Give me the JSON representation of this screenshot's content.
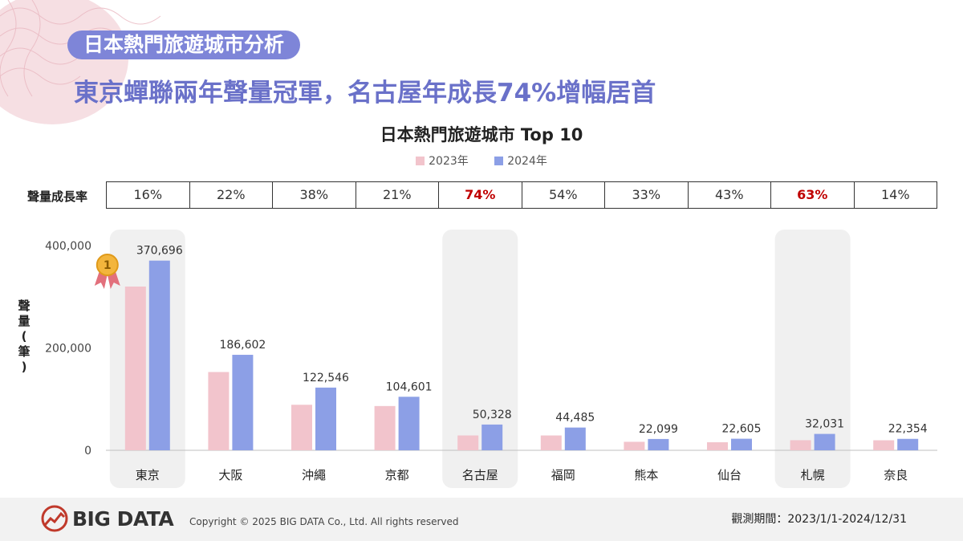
{
  "header": {
    "section_title": "日本熱門旅遊城市分析",
    "headline": "東京蟬聯兩年聲量冠軍，名古屋年成長74%增幅居首"
  },
  "growth": {
    "label": "聲量成長率",
    "rates": [
      "16%",
      "22%",
      "38%",
      "21%",
      "74%",
      "54%",
      "33%",
      "43%",
      "63%",
      "14%"
    ],
    "highlighted": [
      4,
      8
    ],
    "highlight_color": "#c00000"
  },
  "chart_data": {
    "type": "bar",
    "title": "日本熱門旅遊城市 Top 10",
    "categories": [
      "東京",
      "大阪",
      "沖繩",
      "京都",
      "名古屋",
      "福岡",
      "熊本",
      "仙台",
      "札幌",
      "奈良"
    ],
    "series": [
      {
        "name": "2023年",
        "color": "#f2c4cc",
        "values": [
          320000,
          153000,
          89000,
          86500,
          29000,
          29000,
          16600,
          15800,
          19700,
          19600
        ]
      },
      {
        "name": "2024年",
        "color": "#8c9fe6",
        "values": [
          370696,
          186602,
          122546,
          104601,
          50328,
          44485,
          22099,
          22605,
          32031,
          22354
        ]
      }
    ],
    "data_labels": [
      "370,696",
      "186,602",
      "122,546",
      "104,601",
      "50,328",
      "44,485",
      "22,099",
      "22,605",
      "32,031",
      "22,354"
    ],
    "ylabel": "聲量(筆)",
    "ylim": [
      0,
      400000
    ],
    "yticks": [
      0,
      200000,
      400000
    ],
    "ytick_labels": [
      "0",
      "200,000",
      "400,000"
    ],
    "highlighted_categories": [
      0,
      4,
      8
    ],
    "legend_position": "top-center",
    "grid": false,
    "badge": {
      "category": 0,
      "text": "1"
    }
  },
  "footer": {
    "brand": "BIG DATA",
    "copyright": "Copyright © 2025 BIG DATA Co., Ltd. All rights reserved",
    "period": "觀測期間：2023/1/1-2024/12/31"
  }
}
